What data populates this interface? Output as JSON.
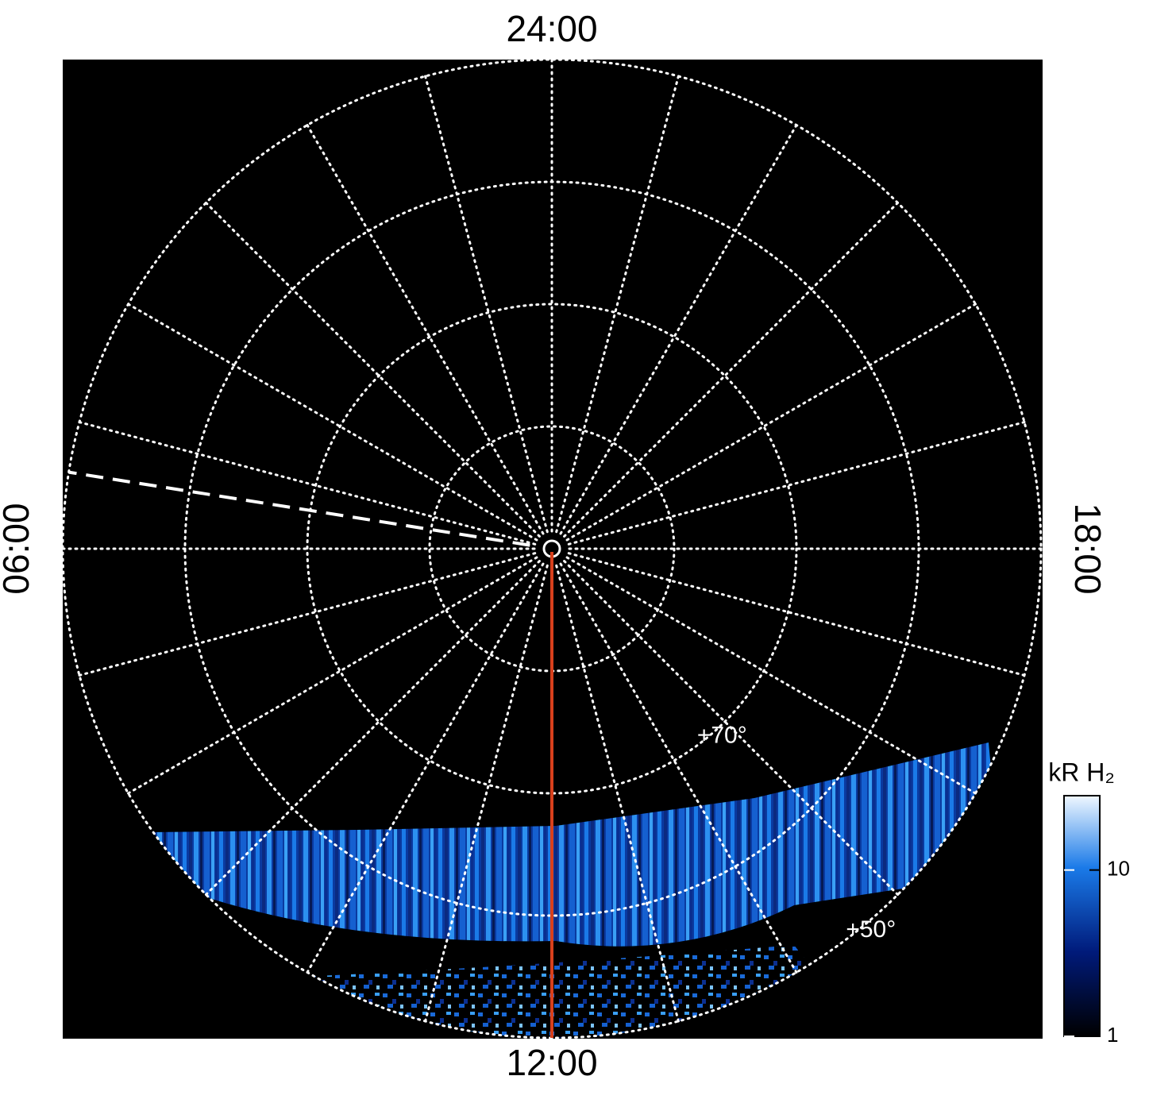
{
  "chart_data": {
    "type": "polar",
    "hour_labels": [
      {
        "value": 24,
        "label": "24:00"
      },
      {
        "value": 6,
        "label": "06:00"
      },
      {
        "value": 12,
        "label": "12:00"
      },
      {
        "value": 18,
        "label": "18:00"
      }
    ],
    "thetaticks": [
      0,
      1,
      2,
      3,
      4,
      5,
      6,
      7,
      8,
      9,
      10,
      11,
      12,
      13,
      14,
      15,
      16,
      17,
      18,
      19,
      20,
      21,
      22,
      23
    ],
    "rlim": [
      90,
      50
    ],
    "rticks": [
      80,
      70,
      60,
      50
    ],
    "lat_labels": [
      {
        "value": 70,
        "label": "+70°"
      },
      {
        "value": 50,
        "label": "+50°"
      }
    ],
    "dashed_line_lt": 5.4,
    "red_line_lt": 12,
    "colorbar": {
      "title": "kR H₂",
      "lim": [
        1,
        28
      ],
      "ticks": [
        1,
        10
      ],
      "scale": "log"
    }
  }
}
